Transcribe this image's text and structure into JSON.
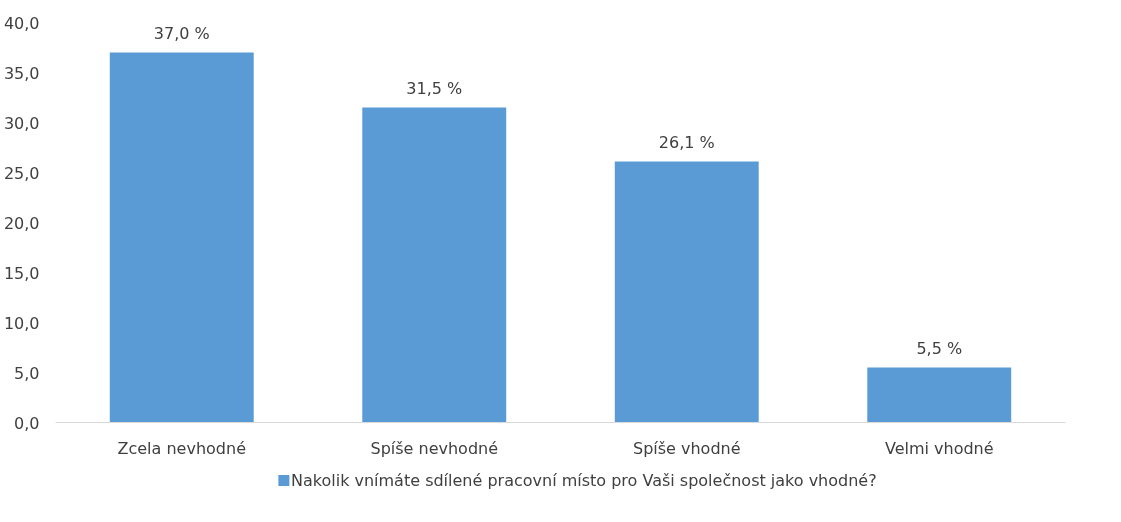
{
  "chart_data": {
    "type": "bar",
    "categories": [
      "Zcela nevhodné",
      "Spíše nevhodné",
      "Spíše vhodné",
      "Velmi vhodné"
    ],
    "series": [
      {
        "name": "Nakolik vnímáte sdílené pracovní místo pro Vaši společnost jako vhodné?",
        "color": "#5b9bd5",
        "values": [
          37.0,
          31.5,
          26.1,
          5.5
        ],
        "value_labels": [
          "37,0 %",
          "31,5 %",
          "26,1 %",
          "5,5 %"
        ]
      }
    ],
    "ylim": [
      0,
      40
    ],
    "yticks": [
      {
        "value": 0,
        "label": "0,0"
      },
      {
        "value": 5,
        "label": "5,0"
      },
      {
        "value": 10,
        "label": "10,0"
      },
      {
        "value": 15,
        "label": "15,0"
      },
      {
        "value": 20,
        "label": "20,0"
      },
      {
        "value": 25,
        "label": "25,0"
      },
      {
        "value": 30,
        "label": "30,0"
      },
      {
        "value": 35,
        "label": "35,0"
      },
      {
        "value": 40,
        "label": "40,0"
      }
    ],
    "legend": "bottom"
  }
}
